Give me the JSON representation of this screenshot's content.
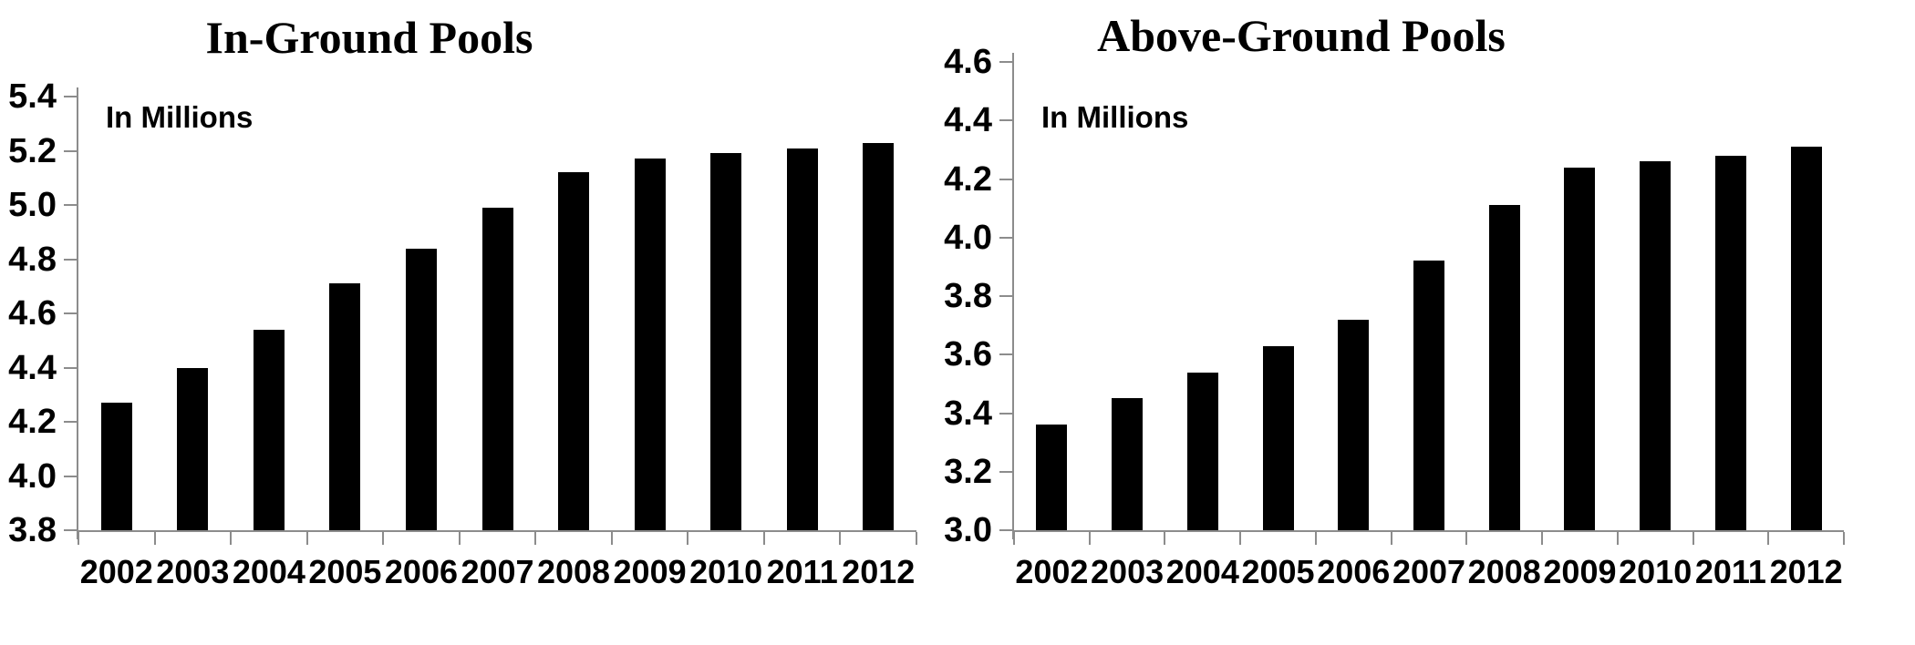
{
  "colors": {
    "background": "#ffffff",
    "bar": "#000000",
    "axis": "#8c8c8c",
    "text": "#000000"
  },
  "chart_data": [
    {
      "type": "bar",
      "title": "In-Ground Pools",
      "annotation": "In Millions",
      "xlabel": "",
      "ylabel": "",
      "categories": [
        "2002",
        "2003",
        "2004",
        "2005",
        "2006",
        "2007",
        "2008",
        "2009",
        "2010",
        "2011",
        "2012"
      ],
      "values": [
        4.27,
        4.4,
        4.54,
        4.71,
        4.84,
        4.99,
        5.12,
        5.17,
        5.19,
        5.21,
        5.23
      ],
      "ylim": [
        3.8,
        5.4
      ],
      "ytick_step": 0.2,
      "ytick_labels": [
        "3.8",
        "4.0",
        "4.2",
        "4.4",
        "4.6",
        "4.8",
        "5.0",
        "5.2",
        "5.4"
      ],
      "grid": false,
      "legend": false,
      "bar_color": "#000000"
    },
    {
      "type": "bar",
      "title": "Above-Ground Pools",
      "annotation": "In Millions",
      "xlabel": "",
      "ylabel": "",
      "categories": [
        "2002",
        "2003",
        "2004",
        "2005",
        "2006",
        "2007",
        "2008",
        "2009",
        "2010",
        "2011",
        "2012"
      ],
      "values": [
        3.36,
        3.45,
        3.54,
        3.63,
        3.72,
        3.92,
        4.11,
        4.24,
        4.26,
        4.28,
        4.31
      ],
      "ylim": [
        3.0,
        4.6
      ],
      "ytick_step": 0.2,
      "ytick_labels": [
        "3.0",
        "3.2",
        "3.4",
        "3.6",
        "3.8",
        "4.0",
        "4.2",
        "4.4",
        "4.6"
      ],
      "grid": false,
      "legend": false,
      "bar_color": "#000000"
    }
  ]
}
